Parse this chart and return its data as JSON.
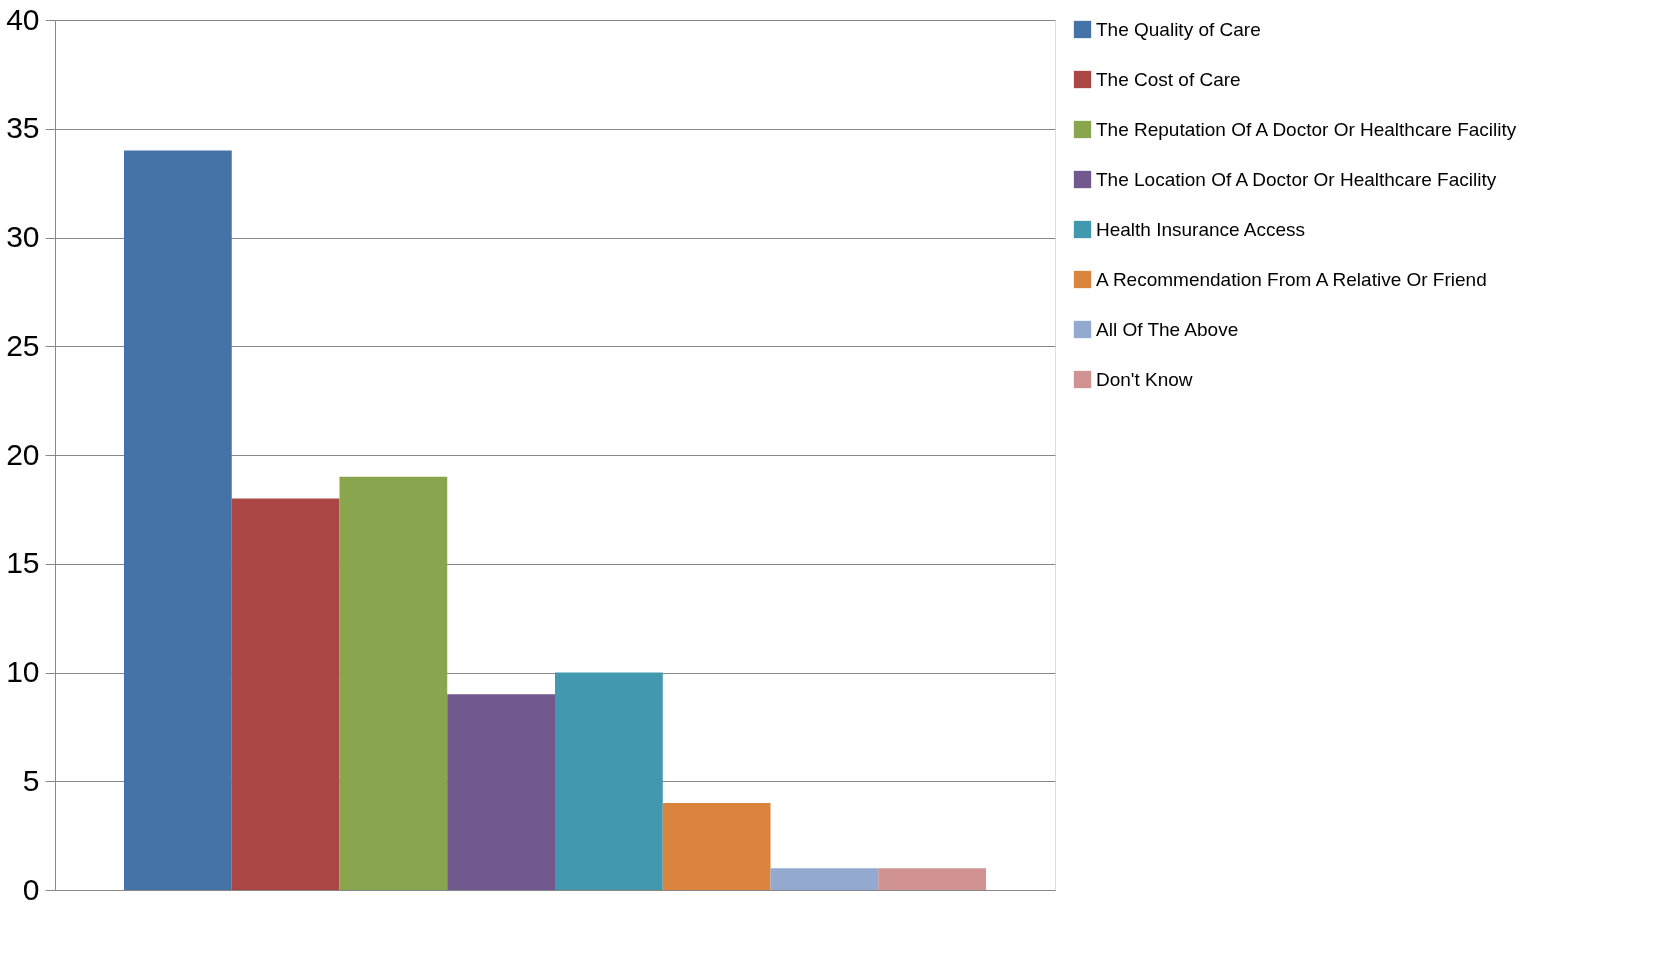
{
  "chart_data": {
    "type": "bar",
    "categories": [
      null
    ],
    "series": [
      {
        "name": "The Quality of Care",
        "color": "#4572a7",
        "values": [
          34
        ]
      },
      {
        "name": "The Cost of Care",
        "color": "#aa4643",
        "values": [
          18
        ]
      },
      {
        "name": "The Reputation Of A Doctor Or Healthcare Facility",
        "color": "#89a54e",
        "values": [
          19
        ]
      },
      {
        "name": "The Location Of A Doctor Or Healthcare Facility",
        "color": "#71588f",
        "values": [
          9
        ]
      },
      {
        "name": "Health Insurance Access",
        "color": "#4198af",
        "values": [
          10
        ]
      },
      {
        "name": "A Recommendation From A Relative Or Friend",
        "color": "#db843d",
        "values": [
          4
        ]
      },
      {
        "name": "All Of The Above",
        "color": "#93a9cf",
        "values": [
          1
        ]
      },
      {
        "name": "Don't Know",
        "color": "#d19392",
        "values": [
          1
        ]
      }
    ],
    "ylim": [
      0,
      40
    ],
    "yticks": [
      0,
      5,
      10,
      15,
      20,
      25,
      30,
      35,
      40
    ],
    "grid": "y",
    "legend": "right"
  }
}
